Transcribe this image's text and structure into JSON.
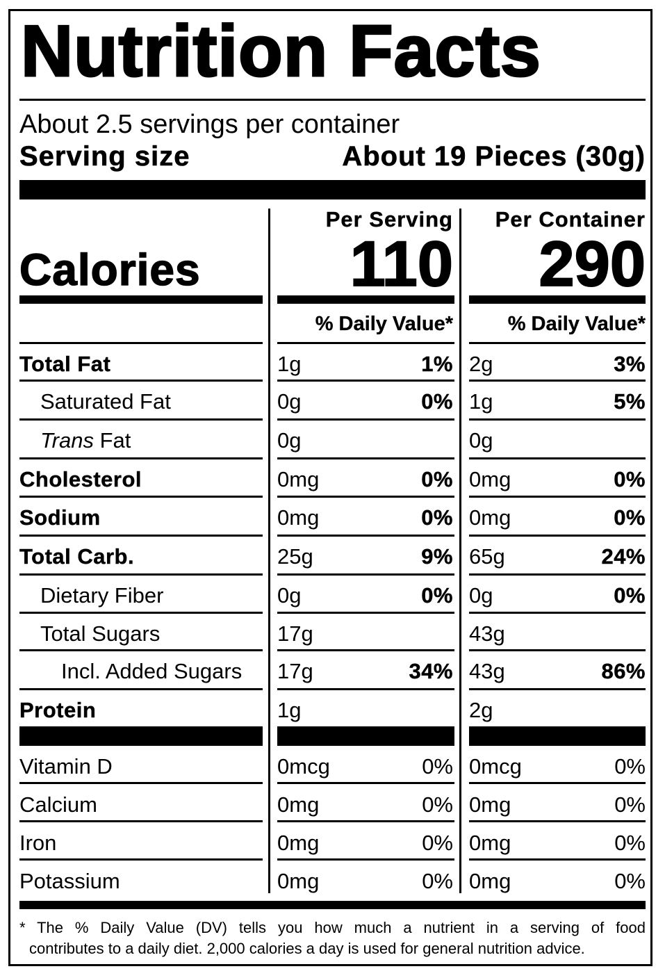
{
  "title": "Nutrition Facts",
  "servings_per_container": "About 2.5 servings per container",
  "serving_size": {
    "label": "Serving size",
    "value": "About 19 Pieces (30g)"
  },
  "calories": {
    "label": "Calories",
    "per_serving_header": "Per Serving",
    "per_container_header": "Per Container",
    "per_serving": "110",
    "per_container": "290"
  },
  "daily_value_header": "% Daily Value*",
  "nutrients": [
    {
      "name": "Total Fat",
      "name_em": "",
      "bold": true,
      "indent": 0,
      "serving_amount": "1g",
      "serving_dv": "1%",
      "container_amount": "2g",
      "container_dv": "3%"
    },
    {
      "name": "Saturated Fat",
      "name_em": "",
      "bold": false,
      "indent": 1,
      "serving_amount": "0g",
      "serving_dv": "0%",
      "container_amount": "1g",
      "container_dv": "5%"
    },
    {
      "name": " Fat",
      "name_em": "Trans",
      "bold": false,
      "indent": 1,
      "serving_amount": "0g",
      "serving_dv": "",
      "container_amount": "0g",
      "container_dv": ""
    },
    {
      "name": "Cholesterol",
      "name_em": "",
      "bold": true,
      "indent": 0,
      "serving_amount": "0mg",
      "serving_dv": "0%",
      "container_amount": "0mg",
      "container_dv": "0%"
    },
    {
      "name": "Sodium",
      "name_em": "",
      "bold": true,
      "indent": 0,
      "serving_amount": "0mg",
      "serving_dv": "0%",
      "container_amount": "0mg",
      "container_dv": "0%"
    },
    {
      "name": "Total Carb.",
      "name_em": "",
      "bold": true,
      "indent": 0,
      "serving_amount": "25g",
      "serving_dv": "9%",
      "container_amount": "65g",
      "container_dv": "24%"
    },
    {
      "name": "Dietary Fiber",
      "name_em": "",
      "bold": false,
      "indent": 1,
      "serving_amount": "0g",
      "serving_dv": "0%",
      "container_amount": "0g",
      "container_dv": "0%"
    },
    {
      "name": "Total Sugars",
      "name_em": "",
      "bold": false,
      "indent": 1,
      "serving_amount": "17g",
      "serving_dv": "",
      "container_amount": "43g",
      "container_dv": ""
    },
    {
      "name": "Incl. Added Sugars",
      "name_em": "",
      "bold": false,
      "indent": 2,
      "serving_amount": "17g",
      "serving_dv": "34%",
      "container_amount": "43g",
      "container_dv": "86%"
    },
    {
      "name": "Protein",
      "name_em": "",
      "bold": true,
      "indent": 0,
      "serving_amount": "1g",
      "serving_dv": "",
      "container_amount": "2g",
      "container_dv": ""
    }
  ],
  "vitamins": [
    {
      "name": "Vitamin D",
      "serving_amount": "0mcg",
      "serving_dv": "0%",
      "container_amount": "0mcg",
      "container_dv": "0%"
    },
    {
      "name": "Calcium",
      "serving_amount": "0mg",
      "serving_dv": "0%",
      "container_amount": "0mg",
      "container_dv": "0%"
    },
    {
      "name": "Iron",
      "serving_amount": "0mg",
      "serving_dv": "0%",
      "container_amount": "0mg",
      "container_dv": "0%"
    },
    {
      "name": "Potassium",
      "serving_amount": "0mg",
      "serving_dv": "0%",
      "container_amount": "0mg",
      "container_dv": "0%"
    }
  ],
  "footnote": {
    "line1": "* The % Daily Value (DV) tells you how much a nutrient in a serving of food",
    "line2": "contributes to a daily diet. 2,000 calories a day is used for general nutrition advice."
  }
}
